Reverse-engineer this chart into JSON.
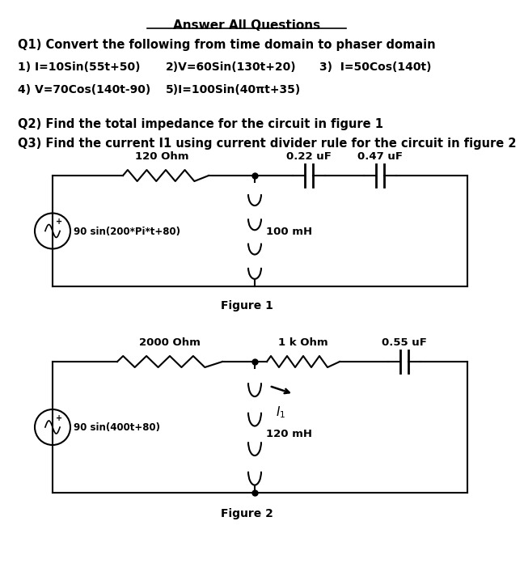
{
  "title": "Answer All Questions",
  "q1_header": "Q1) Convert the following from time domain to phaser domain",
  "q1_items": [
    "1) I=10Sin(55t+50)",
    "2)V=60Sin(130t+20)",
    "3)  I=50Cos(140t)",
    "4) V=70Cos(140t-90)",
    "5)I=100Sin(40πt+35)"
  ],
  "q2": "Q2) Find the total impedance for the circuit in figure 1",
  "q3": "Q3) Find the current I1 using current divider rule for the circuit in figure 2",
  "fig1_label": "Figure 1",
  "fig2_label": "Figure 2",
  "fig1": {
    "source_label": "90 sin(200*Pi*t+80)",
    "r_label": "120 Ohm",
    "l_label": "100 mH",
    "c1_label": "0.22 uF",
    "c2_label": "0.47 uF"
  },
  "fig2": {
    "source_label": "90 sin(400t+80)",
    "r1_label": "2000 Ohm",
    "r2_label": "1 k Ohm",
    "l_label": "120 mH",
    "c_label": "0.55 uF"
  },
  "bg_color": "#ffffff",
  "text_color": "#000000",
  "line_color": "#000000"
}
